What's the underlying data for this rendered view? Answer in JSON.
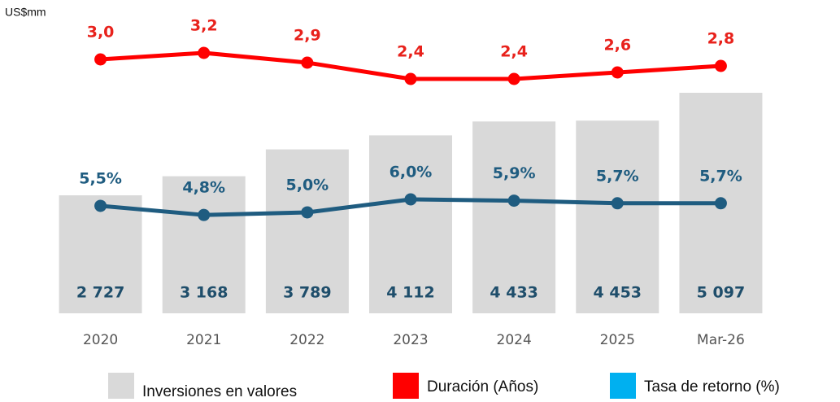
{
  "chart_data": {
    "type": "bar_line",
    "unit_label": "US$mm",
    "categories": [
      "2020",
      "2021",
      "2022",
      "2023",
      "2024",
      "2025",
      "Mar-26"
    ],
    "ylim": [
      0,
      6865
    ],
    "y2lim": [
      -4.8,
      4.325
    ],
    "y3lim": [
      -2.75,
      20.06
    ],
    "series": [
      {
        "name": "Inversiones en valores",
        "type": "bar",
        "color": "#d9d9d9",
        "label_color": "#1f4e6b",
        "values": [
          2727,
          3168,
          3789,
          4112,
          4433,
          4453,
          5097
        ],
        "value_labels": [
          "2 727",
          "3 168",
          "3 789",
          "4 112",
          "4 433",
          "4 453",
          "5 097"
        ]
      },
      {
        "name": "Duración (Años)",
        "type": "line",
        "axis": "y2",
        "color": "#ff0000",
        "label_color": "#e8221c",
        "values": [
          3.0,
          3.2,
          2.9,
          2.4,
          2.4,
          2.6,
          2.8
        ],
        "value_labels": [
          "3,0",
          "3,2",
          "2,9",
          "2,4",
          "2,4",
          "2,6",
          "2,8"
        ]
      },
      {
        "name": "Tasa de retorno (%)",
        "type": "line",
        "axis": "y3",
        "color": "#1f5c80",
        "legend_color": "#00b0f0",
        "label_color": "#1f5c80",
        "values": [
          5.5,
          4.8,
          5.0,
          6.0,
          5.9,
          5.7,
          5.7
        ],
        "value_labels": [
          "5,5%",
          "4,8%",
          "5,0%",
          "6,0%",
          "5,9%",
          "5,7%",
          "5,7%"
        ]
      }
    ]
  }
}
